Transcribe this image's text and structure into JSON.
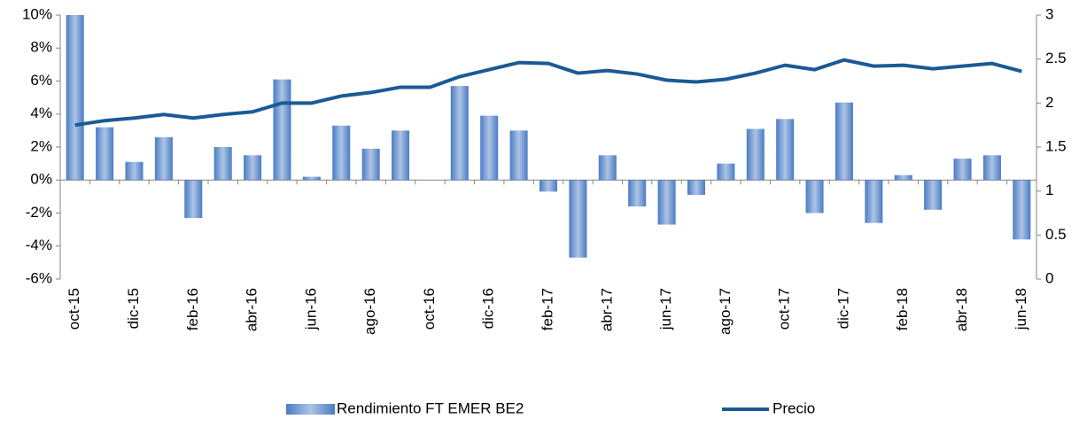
{
  "chart_data": {
    "type": "bar",
    "categories": [
      "oct-15",
      null,
      "dic-15",
      null,
      "feb-16",
      null,
      "abr-16",
      null,
      "jun-16",
      null,
      "ago-16",
      null,
      "oct-16",
      null,
      "dic-16",
      null,
      "feb-17",
      null,
      "abr-17",
      null,
      "jun-17",
      null,
      "ago-17",
      null,
      "oct-17",
      null,
      "dic-17",
      null,
      "feb-18",
      null,
      "abr-18",
      null,
      "jun-18"
    ],
    "series": [
      {
        "name": "Rendimiento FT EMER BE2",
        "color": "#4a7cc4",
        "values": [
          10,
          3.2,
          1.1,
          2.6,
          -2.3,
          2.0,
          1.5,
          6.1,
          0.2,
          3.3,
          1.9,
          3.0,
          0,
          5.7,
          3.9,
          3.0,
          -0.7,
          -4.7,
          1.5,
          -1.6,
          -2.7,
          -0.9,
          1.0,
          3.1,
          3.7,
          -2.0,
          4.7,
          -2.6,
          0.3,
          -1.8,
          1.3,
          1.5,
          -3.6
        ]
      },
      {
        "name": "Precio",
        "color": "#1a5a96",
        "type": "line",
        "axis": "y2",
        "values": [
          1.75,
          1.8,
          1.83,
          1.87,
          1.83,
          1.87,
          1.9,
          2.0,
          2.0,
          2.08,
          2.12,
          2.18,
          2.18,
          2.3,
          2.38,
          2.46,
          2.45,
          2.34,
          2.37,
          2.33,
          2.26,
          2.24,
          2.27,
          2.34,
          2.43,
          2.38,
          2.49,
          2.42,
          2.43,
          2.39,
          2.42,
          2.45,
          2.36
        ]
      }
    ],
    "ylim": [
      -6,
      10
    ],
    "yticks": [
      {
        "value": -6,
        "label": "-6%"
      },
      {
        "value": -4,
        "label": "-4%"
      },
      {
        "value": -2,
        "label": "-2%"
      },
      {
        "value": 0,
        "label": "0%"
      },
      {
        "value": 2,
        "label": "2%"
      },
      {
        "value": 4,
        "label": "4%"
      },
      {
        "value": 6,
        "label": "6%"
      },
      {
        "value": 8,
        "label": "8%"
      },
      {
        "value": 10,
        "label": "10%"
      }
    ],
    "y2lim": [
      0,
      3
    ],
    "y2ticks": [
      0,
      0.5,
      1,
      1.5,
      2,
      2.5,
      3
    ],
    "legend": "bottom"
  }
}
